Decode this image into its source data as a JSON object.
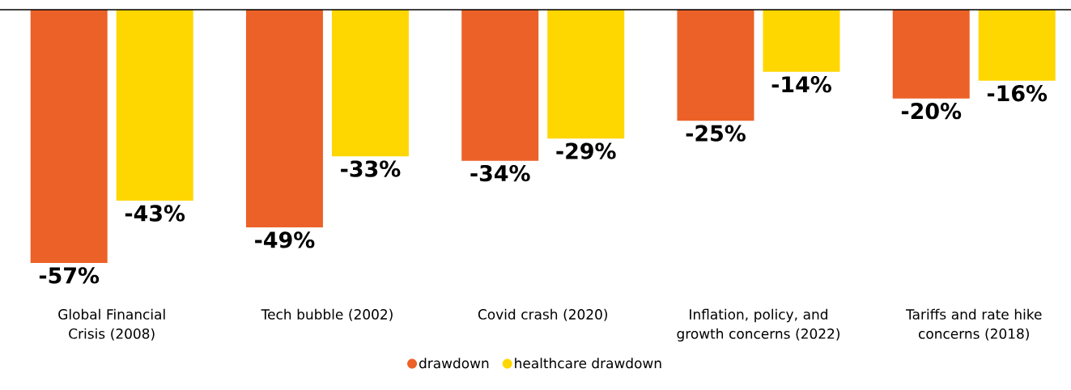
{
  "chart_data": {
    "type": "bar",
    "categories": [
      "Global Financial Crisis (2008)",
      "Tech bubble (2002)",
      "Covid crash (2020)",
      "Inflation, policy, and growth concerns (2022)",
      "Tariffs and rate hike concerns (2018)"
    ],
    "series": [
      {
        "name": "drawdown",
        "color": "#ec6127",
        "values": [
          -57,
          -49,
          -34,
          -25,
          -20
        ],
        "value_labels": [
          "-57%",
          "-49%",
          "-34%",
          "-25%",
          "-20%"
        ]
      },
      {
        "name": "healthcare drawdown",
        "color": "#ffd700",
        "values": [
          -43,
          -33,
          -29,
          -14,
          -16
        ],
        "value_labels": [
          "-43%",
          "-33%",
          "-29%",
          "-14%",
          "-16%"
        ]
      }
    ],
    "legend": "bottom"
  }
}
